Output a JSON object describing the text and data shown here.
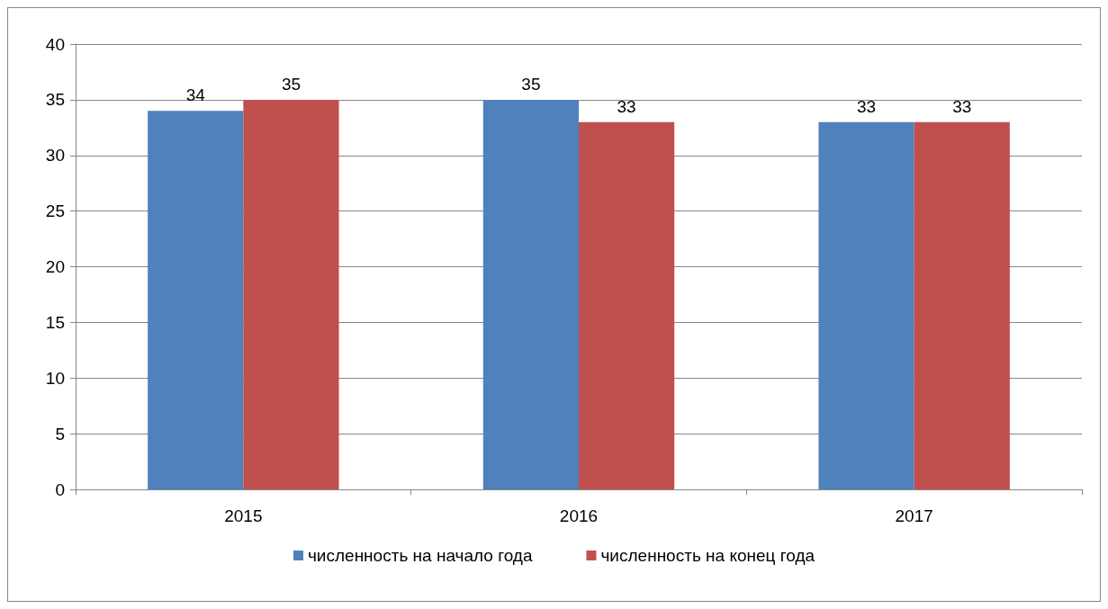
{
  "chart_data": {
    "type": "bar",
    "categories": [
      "2015",
      "2016",
      "2017"
    ],
    "series": [
      {
        "name": "численность на начало года",
        "color": "#4f81bd",
        "values": [
          34,
          35,
          33
        ]
      },
      {
        "name": "численность на конец года",
        "color": "#c0504d",
        "values": [
          35,
          33,
          33
        ]
      }
    ],
    "ylim": [
      0,
      40
    ],
    "yticks": [
      0,
      5,
      10,
      15,
      20,
      25,
      30,
      35,
      40
    ],
    "grid": "y",
    "legend": "bottom",
    "data_labels": true
  }
}
